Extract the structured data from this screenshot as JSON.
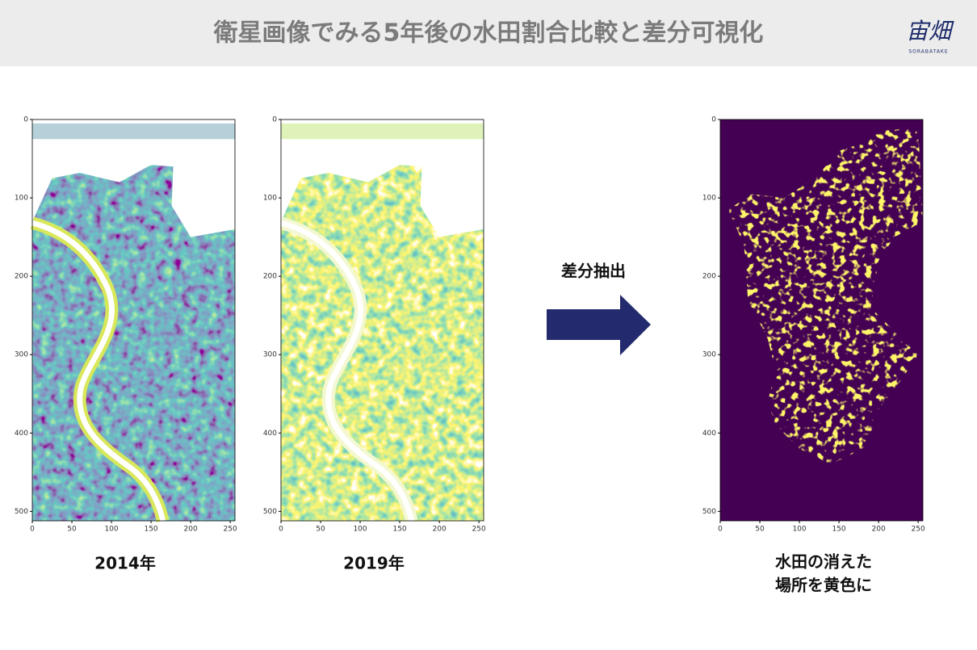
{
  "header": {
    "title": "衛星画像でみる5年後の水田割合比較と差分可視化",
    "logo": "宙畑",
    "logo_sub": "SORABATAKE"
  },
  "axes": {
    "xticks": [
      0,
      50,
      100,
      150,
      200,
      250
    ],
    "yticks": [
      0,
      100,
      200,
      300,
      400,
      500
    ]
  },
  "panels": [
    {
      "caption": "2014年"
    },
    {
      "caption": "2019年"
    },
    {
      "caption": [
        "水田の消えた",
        "場所を黄色に"
      ]
    }
  ],
  "arrow": {
    "label": "差分抽出"
  }
}
